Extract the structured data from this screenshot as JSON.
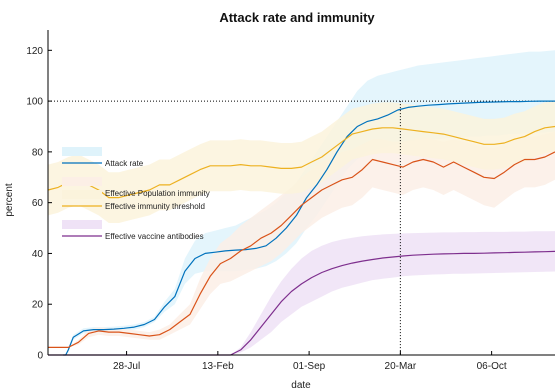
{
  "chart_data": {
    "type": "line",
    "title": "Attack rate and immunity",
    "xlabel": "date",
    "ylabel": "percent",
    "xlim": [
      0,
      100
    ],
    "ylim": [
      0,
      128
    ],
    "x_ticks": [
      {
        "x": 15.5,
        "label": "28-Jul"
      },
      {
        "x": 33.5,
        "label": "13-Feb"
      },
      {
        "x": 51.5,
        "label": "01-Sep"
      },
      {
        "x": 69.5,
        "label": "20-Mar"
      },
      {
        "x": 87.5,
        "label": "06-Oct"
      }
    ],
    "y_ticks": [
      0,
      20,
      40,
      60,
      80,
      100,
      120
    ],
    "grid": false,
    "legend_position": "left",
    "reference_lines": {
      "horizontal_y": 100,
      "vertical_x": 69.5
    },
    "series": [
      {
        "name": "Attack rate",
        "color": "#0072BD",
        "band_color": "#dff3fb",
        "x": [
          3,
          3.5,
          4,
          5,
          7,
          9,
          11,
          13,
          15,
          17,
          19,
          21,
          23,
          25,
          27,
          29,
          31,
          33,
          35,
          37,
          39,
          41,
          43,
          45,
          47,
          49,
          51,
          53,
          55,
          57,
          59,
          61,
          63,
          65,
          67,
          69,
          71,
          73,
          75,
          77,
          79,
          81,
          83,
          85,
          87,
          89,
          91,
          93,
          95,
          97,
          100
        ],
        "values": [
          0,
          0,
          2,
          7,
          9.5,
          10,
          10,
          10.2,
          10.5,
          11,
          12,
          14,
          19,
          23,
          33,
          38,
          40,
          40.5,
          41,
          41.3,
          41.5,
          42,
          43,
          46,
          50,
          55,
          62,
          67,
          73,
          80,
          86,
          90,
          92,
          93,
          94.5,
          96.5,
          97.5,
          98,
          98.4,
          98.6,
          98.9,
          99.1,
          99.3,
          99.5,
          99.6,
          99.7,
          99.8,
          99.8,
          99.9,
          100,
          100
        ],
        "band_upper": [
          0,
          0,
          3,
          8,
          10.5,
          11,
          11,
          11.2,
          11.5,
          12,
          13,
          15,
          21,
          26,
          38,
          45,
          48,
          49,
          50,
          51,
          53,
          55,
          57,
          60,
          64,
          68,
          74,
          80,
          86,
          92,
          98,
          104,
          108,
          110,
          111,
          112,
          113,
          114,
          114.5,
          115,
          115.5,
          116,
          116.5,
          117,
          117.5,
          118,
          118.5,
          119,
          119.5,
          119.5,
          120
        ],
        "band_lower": [
          0,
          0,
          1,
          6,
          8.5,
          9,
          9,
          9.2,
          9.5,
          10,
          11,
          13,
          17,
          20,
          28,
          32,
          33,
          33,
          33,
          33,
          33.5,
          34,
          35,
          37,
          40,
          44,
          50,
          55,
          61,
          67,
          73,
          77,
          80,
          81,
          82,
          83,
          84,
          84.5,
          85,
          85,
          85.5,
          85.5,
          86,
          86,
          86.5,
          86.5,
          87,
          87,
          87.5,
          87.5,
          88
        ]
      },
      {
        "name": "Effective Population immunity",
        "color": "#D95319",
        "band_color": "#fcefe6",
        "x": [
          0,
          2,
          4,
          6,
          8,
          10,
          12,
          14,
          16,
          18,
          20,
          22,
          24,
          26,
          28,
          30,
          32,
          34,
          36,
          38,
          40,
          42,
          44,
          46,
          48,
          50,
          52,
          54,
          56,
          58,
          60,
          62,
          64,
          66,
          68,
          70,
          72,
          74,
          76,
          78,
          80,
          82,
          84,
          86,
          88,
          90,
          92,
          94,
          96,
          98,
          100
        ],
        "values": [
          3,
          3,
          3,
          5,
          8.5,
          9.5,
          9,
          9,
          8.5,
          8,
          7.5,
          8,
          10,
          13,
          16,
          24,
          31,
          36,
          38,
          41,
          43,
          46,
          48,
          51,
          55,
          59,
          62,
          65,
          67,
          69,
          70,
          73,
          77,
          76,
          75,
          74,
          76,
          77,
          76,
          74,
          76,
          74,
          72,
          70,
          69.5,
          72,
          75,
          77,
          77,
          78,
          80
        ],
        "band_upper": [
          3,
          3,
          3,
          6,
          10,
          11,
          10.5,
          10.5,
          10,
          9.5,
          9,
          10,
          12,
          16,
          20,
          30,
          38,
          44,
          47,
          51,
          54,
          57,
          60,
          63,
          66,
          70,
          73,
          76,
          78,
          80,
          81,
          83,
          85,
          85,
          84,
          84,
          85,
          86,
          85,
          84,
          85,
          84,
          83,
          82,
          81.5,
          83,
          85,
          86,
          86,
          87,
          88
        ],
        "band_lower": [
          3,
          3,
          3,
          4,
          7,
          8,
          7.5,
          7.5,
          7,
          6.5,
          6,
          6,
          8,
          10,
          12,
          18,
          24,
          28,
          29,
          31,
          33,
          35,
          37,
          40,
          44,
          48,
          51,
          54,
          56,
          58,
          59,
          62,
          66,
          65,
          64,
          63,
          65,
          66,
          65,
          63,
          65,
          63,
          61,
          59,
          58,
          61,
          64,
          66,
          66,
          67,
          69
        ]
      },
      {
        "name": "Effective immunity threshold",
        "color": "#EDB120",
        "band_color": "#fbf3dc",
        "x": [
          0,
          2,
          4,
          6,
          8,
          10,
          12,
          14,
          16,
          18,
          20,
          22,
          24,
          26,
          28,
          30,
          32,
          34,
          36,
          38,
          40,
          42,
          44,
          46,
          48,
          50,
          52,
          54,
          56,
          58,
          60,
          62,
          64,
          66,
          68,
          70,
          72,
          74,
          76,
          78,
          80,
          82,
          84,
          86,
          88,
          90,
          92,
          94,
          96,
          98,
          100
        ],
        "values": [
          65,
          66,
          68,
          69,
          67,
          65,
          62,
          62,
          63,
          64,
          65,
          67,
          67,
          69,
          71,
          73,
          74.5,
          74.5,
          74.5,
          75,
          74.5,
          74.5,
          74,
          73.5,
          73.5,
          74,
          76,
          78,
          81,
          84,
          87,
          88,
          89,
          89.5,
          89.5,
          89,
          88.5,
          88,
          87.5,
          87,
          86,
          85,
          84,
          83,
          83,
          83.5,
          85,
          86,
          88,
          89.5,
          90
        ],
        "band_upper": [
          75,
          76,
          78,
          79,
          77,
          75,
          72,
          72,
          73,
          74,
          75,
          77,
          77,
          79,
          81,
          83,
          84.5,
          84.5,
          84.5,
          85,
          84.5,
          84.5,
          84,
          83.5,
          83.5,
          84,
          86,
          88,
          91,
          94,
          97,
          98,
          99,
          99.5,
          99.5,
          99,
          98.5,
          98,
          97.5,
          97,
          96,
          95,
          94,
          93,
          93,
          93.5,
          95,
          96,
          98,
          99.5,
          100
        ],
        "band_lower": [
          55,
          56,
          58,
          59,
          57,
          55,
          52,
          52,
          53,
          54,
          55,
          57,
          57,
          59,
          61,
          63,
          64.5,
          64.5,
          64.5,
          65,
          64.5,
          64.5,
          64,
          63.5,
          63.5,
          64,
          66,
          68,
          71,
          74,
          77,
          78,
          79,
          79.5,
          79.5,
          79,
          78.5,
          78,
          77.5,
          77,
          76,
          75,
          74,
          73,
          73,
          73.5,
          75,
          76,
          78,
          79.5,
          80
        ]
      },
      {
        "name": "Effective vaccine antibodies",
        "color": "#7E2F8E",
        "band_color": "#efe2f6",
        "x": [
          0,
          10,
          20,
          30,
          36,
          38,
          40,
          42,
          44,
          46,
          48,
          50,
          52,
          54,
          56,
          58,
          60,
          62,
          64,
          66,
          68,
          70,
          72,
          74,
          76,
          78,
          80,
          82,
          84,
          86,
          88,
          90,
          92,
          94,
          96,
          98,
          100
        ],
        "values": [
          0,
          0,
          0,
          0,
          0,
          2,
          6,
          11,
          16,
          21,
          25,
          28,
          30.5,
          32.5,
          34,
          35.2,
          36.2,
          37,
          37.6,
          38.2,
          38.6,
          39,
          39.3,
          39.5,
          39.7,
          39.8,
          39.9,
          40,
          40,
          40.1,
          40.2,
          40.3,
          40.4,
          40.5,
          40.6,
          40.7,
          40.8
        ],
        "band_upper": [
          0,
          0,
          0,
          0,
          0,
          3,
          9,
          16,
          23,
          29,
          34,
          38,
          41,
          43,
          44.5,
          45.5,
          46.2,
          46.8,
          47.2,
          47.5,
          47.7,
          47.9,
          48,
          48.1,
          48.2,
          48.3,
          48.3,
          48.4,
          48.4,
          48.5,
          48.5,
          48.5,
          48.6,
          48.6,
          48.7,
          48.7,
          48.8
        ],
        "band_lower": [
          0,
          0,
          0,
          0,
          0,
          1,
          3,
          6,
          9,
          13,
          16,
          19,
          21,
          23,
          25,
          26.5,
          27.5,
          28.5,
          29.5,
          30,
          30.5,
          31,
          31.3,
          31.5,
          31.7,
          31.8,
          32,
          32,
          32.1,
          32.2,
          32.3,
          32.4,
          32.5,
          32.6,
          32.7,
          32.8,
          32.9
        ]
      }
    ]
  }
}
